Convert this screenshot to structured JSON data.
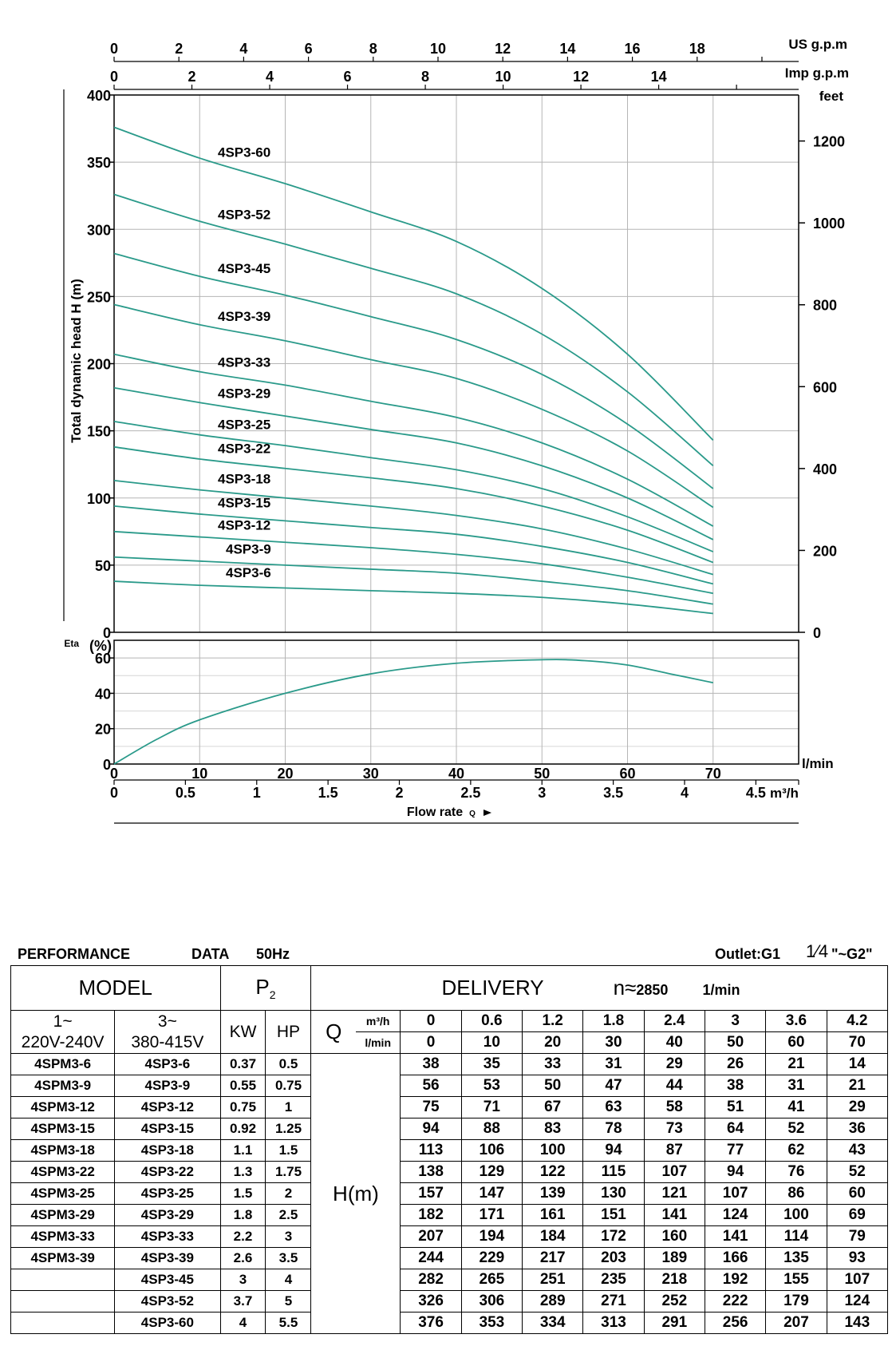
{
  "chart_data": [
    {
      "type": "line",
      "title": "",
      "xlabel": "Flow rate Q",
      "ylabel": "Total dynamic head H (m)",
      "ylim": [
        0,
        400
      ],
      "xlim": [
        0,
        80
      ],
      "x_unit": "l/min",
      "grid": true,
      "x_ticks": [
        "0",
        "10",
        "20",
        "30",
        "40",
        "50",
        "60",
        "70"
      ],
      "y_ticks": [
        "0",
        "50",
        "100",
        "150",
        "200",
        "250",
        "300",
        "350",
        "400"
      ],
      "secondary_axes": {
        "us_gpm": {
          "label": "US g.p.m",
          "ticks": [
            "0",
            "2",
            "4",
            "6",
            "8",
            "10",
            "12",
            "14",
            "16",
            "18"
          ]
        },
        "imp_gpm": {
          "label": "Imp g.p.m",
          "ticks": [
            "0",
            "2",
            "4",
            "6",
            "8",
            "10",
            "12",
            "14"
          ]
        },
        "feet": {
          "label": "feet",
          "ticks": [
            "0",
            "200",
            "400",
            "600",
            "800",
            "1000",
            "1200"
          ]
        },
        "m3h": {
          "label": "m³/h",
          "ticks": [
            "0",
            "0.5",
            "1",
            "1.5",
            "2",
            "2.5",
            "3",
            "3.5",
            "4",
            "4.5"
          ]
        }
      },
      "x": [
        0,
        10,
        20,
        30,
        40,
        50,
        60,
        70
      ],
      "series": [
        {
          "name": "4SP3-60",
          "values": [
            376,
            353,
            334,
            313,
            291,
            256,
            207,
            143
          ]
        },
        {
          "name": "4SP3-52",
          "values": [
            326,
            306,
            289,
            271,
            252,
            222,
            179,
            124
          ]
        },
        {
          "name": "4SP3-45",
          "values": [
            282,
            265,
            251,
            235,
            218,
            192,
            155,
            107
          ]
        },
        {
          "name": "4SP3-39",
          "values": [
            244,
            229,
            217,
            203,
            189,
            166,
            135,
            93
          ]
        },
        {
          "name": "4SP3-33",
          "values": [
            207,
            194,
            184,
            172,
            160,
            141,
            114,
            79
          ]
        },
        {
          "name": "4SP3-29",
          "values": [
            182,
            171,
            161,
            151,
            141,
            124,
            100,
            69
          ]
        },
        {
          "name": "4SP3-25",
          "values": [
            157,
            147,
            139,
            130,
            121,
            107,
            86,
            60
          ]
        },
        {
          "name": "4SP3-22",
          "values": [
            138,
            129,
            122,
            115,
            107,
            94,
            76,
            52
          ]
        },
        {
          "name": "4SP3-18",
          "values": [
            113,
            106,
            100,
            94,
            87,
            77,
            62,
            43
          ]
        },
        {
          "name": "4SP3-15",
          "values": [
            94,
            88,
            83,
            78,
            73,
            64,
            52,
            36
          ]
        },
        {
          "name": "4SP3-12",
          "values": [
            75,
            71,
            67,
            63,
            58,
            51,
            41,
            29
          ]
        },
        {
          "name": "4SP3-9",
          "values": [
            56,
            53,
            50,
            47,
            44,
            38,
            31,
            21
          ]
        },
        {
          "name": "4SP3-6",
          "values": [
            38,
            35,
            33,
            31,
            29,
            26,
            21,
            14
          ]
        }
      ],
      "line_color": "#2a9a8a"
    },
    {
      "type": "line",
      "title": "",
      "ylabel": "Eta (%)",
      "ylim": [
        0,
        70
      ],
      "y_ticks": [
        "0",
        "20",
        "40",
        "60"
      ],
      "x": [
        0,
        5,
        10,
        20,
        30,
        40,
        50,
        55,
        60,
        65,
        70
      ],
      "values": [
        0,
        14,
        25,
        40,
        51,
        57,
        59,
        58.5,
        56,
        51,
        46
      ],
      "line_color": "#2a9a8a"
    }
  ],
  "flow_rate_label": "Flow rate",
  "flow_rate_symbol": "Q",
  "eta_label": "Eta",
  "eta_unit": "(%)",
  "lmin_label": "l/min",
  "table": {
    "header_left": "PERFORMANCE",
    "header_data": "DATA",
    "header_freq": "50Hz",
    "outlet": "Outlet:G1",
    "outlet_fraction": "1⁄4",
    "outlet_suffix": "\"~G2\"",
    "model_label": "MODEL",
    "p2_label": "P",
    "p2_sub": "2",
    "delivery_label": "DELIVERY",
    "speed_label": "n≈",
    "speed_value": "2850",
    "speed_unit": "1/min",
    "phase1_top": "1~",
    "phase1_bottom": "220V-240V",
    "phase3_top": "3~",
    "phase3_bottom": "380-415V",
    "kw_label": "KW",
    "hp_label": "HP",
    "q_label": "Q",
    "m3h_label": "m³/h",
    "lmin_label": "l/min",
    "h_label": "H(m)",
    "q_m3h": [
      "0",
      "0.6",
      "1.2",
      "1.8",
      "2.4",
      "3",
      "3.6",
      "4.2"
    ],
    "q_lmin": [
      "0",
      "10",
      "20",
      "30",
      "40",
      "50",
      "60",
      "70"
    ],
    "rows": [
      {
        "m1": "4SPM3-6",
        "m3": "4SP3-6",
        "kw": "0.37",
        "hp": "0.5",
        "h": [
          "38",
          "35",
          "33",
          "31",
          "29",
          "26",
          "21",
          "14"
        ]
      },
      {
        "m1": "4SPM3-9",
        "m3": "4SP3-9",
        "kw": "0.55",
        "hp": "0.75",
        "h": [
          "56",
          "53",
          "50",
          "47",
          "44",
          "38",
          "31",
          "21"
        ]
      },
      {
        "m1": "4SPM3-12",
        "m3": "4SP3-12",
        "kw": "0.75",
        "hp": "1",
        "h": [
          "75",
          "71",
          "67",
          "63",
          "58",
          "51",
          "41",
          "29"
        ]
      },
      {
        "m1": "4SPM3-15",
        "m3": "4SP3-15",
        "kw": "0.92",
        "hp": "1.25",
        "h": [
          "94",
          "88",
          "83",
          "78",
          "73",
          "64",
          "52",
          "36"
        ]
      },
      {
        "m1": "4SPM3-18",
        "m3": "4SP3-18",
        "kw": "1.1",
        "hp": "1.5",
        "h": [
          "113",
          "106",
          "100",
          "94",
          "87",
          "77",
          "62",
          "43"
        ]
      },
      {
        "m1": "4SPM3-22",
        "m3": "4SP3-22",
        "kw": "1.3",
        "hp": "1.75",
        "h": [
          "138",
          "129",
          "122",
          "115",
          "107",
          "94",
          "76",
          "52"
        ]
      },
      {
        "m1": "4SPM3-25",
        "m3": "4SP3-25",
        "kw": "1.5",
        "hp": "2",
        "h": [
          "157",
          "147",
          "139",
          "130",
          "121",
          "107",
          "86",
          "60"
        ]
      },
      {
        "m1": "4SPM3-29",
        "m3": "4SP3-29",
        "kw": "1.8",
        "hp": "2.5",
        "h": [
          "182",
          "171",
          "161",
          "151",
          "141",
          "124",
          "100",
          "69"
        ]
      },
      {
        "m1": "4SPM3-33",
        "m3": "4SP3-33",
        "kw": "2.2",
        "hp": "3",
        "h": [
          "207",
          "194",
          "184",
          "172",
          "160",
          "141",
          "114",
          "79"
        ]
      },
      {
        "m1": "4SPM3-39",
        "m3": "4SP3-39",
        "kw": "2.6",
        "hp": "3.5",
        "h": [
          "244",
          "229",
          "217",
          "203",
          "189",
          "166",
          "135",
          "93"
        ]
      },
      {
        "m1": "",
        "m3": "4SP3-45",
        "kw": "3",
        "hp": "4",
        "h": [
          "282",
          "265",
          "251",
          "235",
          "218",
          "192",
          "155",
          "107"
        ]
      },
      {
        "m1": "",
        "m3": "4SP3-52",
        "kw": "3.7",
        "hp": "5",
        "h": [
          "326",
          "306",
          "289",
          "271",
          "252",
          "222",
          "179",
          "124"
        ]
      },
      {
        "m1": "",
        "m3": "4SP3-60",
        "kw": "4",
        "hp": "5.5",
        "h": [
          "376",
          "353",
          "334",
          "313",
          "291",
          "256",
          "207",
          "143"
        ]
      }
    ]
  }
}
